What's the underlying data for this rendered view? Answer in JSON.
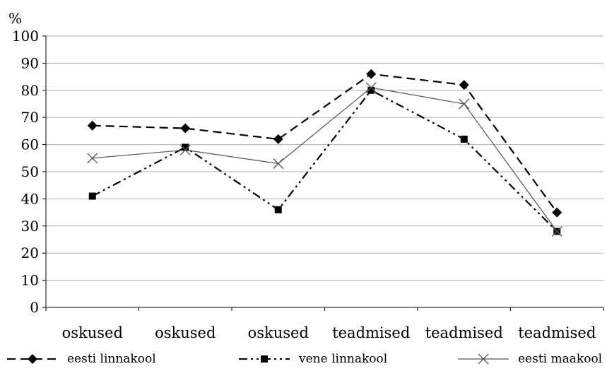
{
  "chart_data": {
    "type": "line",
    "ylabel": "%",
    "ylim": [
      0,
      100
    ],
    "yticks": [
      0,
      10,
      20,
      30,
      40,
      50,
      60,
      70,
      80,
      90,
      100
    ],
    "categories": [
      "oskused",
      "oskused",
      "oskused",
      "teadmised",
      "teadmised",
      "teadmised"
    ],
    "grid": true,
    "legend_position": "bottom",
    "series": [
      {
        "name": "eesti linnakool",
        "values": [
          67,
          66,
          62,
          86,
          82,
          35
        ],
        "marker": "diamond",
        "dash": "dashed",
        "color": "#000000"
      },
      {
        "name": "vene linnakool",
        "values": [
          41,
          59,
          36,
          80,
          62,
          28
        ],
        "marker": "square",
        "dash": "dash-dot-dot",
        "color": "#000000"
      },
      {
        "name": "eesti maakool",
        "values": [
          55,
          58,
          53,
          81,
          75,
          28
        ],
        "marker": "x",
        "dash": "solid",
        "color": "#555555"
      }
    ]
  }
}
